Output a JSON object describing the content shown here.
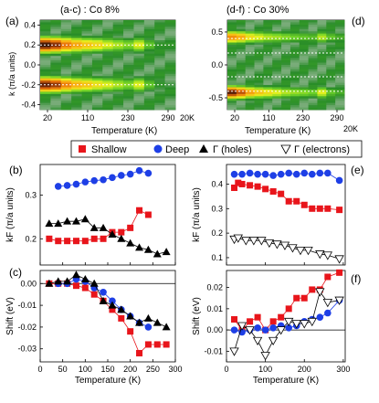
{
  "panel_letters": {
    "a": "(a)",
    "b": "(b)",
    "c": "(c)",
    "d": "(d)",
    "e": "(e)",
    "f": "(f)"
  },
  "colors": {
    "shallow": "#e8151b",
    "deep": "#1e3fe6",
    "holes": "#000000",
    "electrons": "#000000",
    "zero_line": "#000000"
  },
  "chart_data": [
    {
      "id": "a-c",
      "type": "heatmap",
      "title": "(a-c) : Co 8%",
      "xlabel": "Temperature (K)",
      "ylabel": "k (π/a units)",
      "xticks": [
        "20",
        "110",
        "230",
        "290"
      ],
      "corner_label": "20K",
      "ylim": [
        -0.45,
        0.45
      ],
      "yticks": [
        "-0.4",
        "-0.2",
        "0.0",
        "0.2",
        "0.4"
      ],
      "dashed_k": [
        0.2,
        -0.2
      ],
      "columns": 13,
      "band_profile": [
        {
          "k": 0.2,
          "width": 0.09,
          "intensity": [
            0.98,
            0.92,
            0.8,
            0.72,
            0.66,
            0.62,
            0.55,
            0.5,
            0.45,
            0.55,
            0.4,
            0.3,
            0.25
          ]
        },
        {
          "k": -0.2,
          "width": 0.09,
          "intensity": [
            0.95,
            0.9,
            0.78,
            0.7,
            0.66,
            0.6,
            0.55,
            0.5,
            0.45,
            0.55,
            0.4,
            0.3,
            0.25
          ]
        }
      ]
    },
    {
      "id": "d-f",
      "type": "heatmap",
      "title": "(d-f) : Co 30%",
      "xlabel": "Temperature (K)",
      "ylabel": "",
      "xticks": [
        "20",
        "110",
        "230",
        "290"
      ],
      "corner_label": "20K",
      "ylim": [
        -0.68,
        0.68
      ],
      "yticks": [
        "-0.5",
        "0.0",
        "0.5"
      ],
      "dashed_k": [
        0.4,
        -0.4,
        0.18,
        -0.18
      ],
      "columns": 13,
      "band_profile": [
        {
          "k": 0.42,
          "width": 0.11,
          "intensity": [
            0.75,
            0.7,
            0.6,
            0.55,
            0.5,
            0.48,
            0.45,
            0.42,
            0.4,
            0.38,
            0.5,
            0.4,
            0.35
          ]
        },
        {
          "k": -0.42,
          "width": 0.11,
          "intensity": [
            0.95,
            0.85,
            0.72,
            0.65,
            0.6,
            0.55,
            0.5,
            0.47,
            0.45,
            0.42,
            0.55,
            0.4,
            0.35
          ]
        }
      ]
    },
    {
      "id": "b",
      "type": "scatter",
      "xlabel": "",
      "ylabel": "kF (π/a units)",
      "xlim": [
        0,
        300
      ],
      "ylim": [
        0.14,
        0.37
      ],
      "yticks": [
        0.2,
        0.3
      ],
      "xticks": [
        0,
        50,
        100,
        150,
        200,
        250,
        300
      ],
      "series": [
        {
          "name": "Shallow",
          "marker": "square",
          "x": [
            20,
            40,
            60,
            80,
            100,
            120,
            140,
            160,
            180,
            200,
            220,
            240
          ],
          "y": [
            0.2,
            0.195,
            0.195,
            0.195,
            0.195,
            0.2,
            0.2,
            0.215,
            0.215,
            0.225,
            0.265,
            0.255
          ]
        },
        {
          "name": "Deep",
          "marker": "circle",
          "x": [
            40,
            60,
            80,
            100,
            120,
            140,
            160,
            180,
            200,
            220,
            240
          ],
          "y": [
            0.32,
            0.322,
            0.325,
            0.33,
            0.333,
            0.335,
            0.34,
            0.345,
            0.348,
            0.356,
            0.35
          ]
        },
        {
          "name": "Γ (holes)",
          "marker": "triangle-up",
          "x": [
            20,
            40,
            60,
            80,
            100,
            120,
            140,
            160,
            180,
            200,
            220,
            240,
            260,
            280
          ],
          "y": [
            0.235,
            0.235,
            0.24,
            0.24,
            0.245,
            0.225,
            0.225,
            0.21,
            0.2,
            0.19,
            0.18,
            0.175,
            0.165,
            0.17
          ]
        }
      ]
    },
    {
      "id": "c",
      "type": "scatter",
      "xlabel": "Temperature (K)",
      "ylabel": "Shift (eV)",
      "xlim": [
        0,
        300
      ],
      "ylim": [
        -0.036,
        0.006
      ],
      "yticks": [
        0.0,
        -0.01,
        -0.02,
        -0.03
      ],
      "xticks": [
        0,
        50,
        100,
        150,
        200,
        250,
        300
      ],
      "zero_line": true,
      "series": [
        {
          "name": "Shallow",
          "marker": "square",
          "x": [
            20,
            40,
            60,
            80,
            100,
            120,
            140,
            160,
            180,
            200,
            220,
            240,
            260,
            280
          ],
          "y": [
            0.0,
            0.0,
            0.0,
            -0.001,
            -0.002,
            -0.005,
            -0.008,
            -0.012,
            -0.016,
            -0.022,
            -0.032,
            -0.028,
            -0.028,
            -0.028
          ]
        },
        {
          "name": "Deep",
          "marker": "circle",
          "x": [
            40,
            60,
            80,
            100,
            120,
            140,
            160,
            180,
            200,
            220,
            240
          ],
          "y": [
            0.0,
            0.0,
            0.002,
            0.001,
            -0.002,
            -0.004,
            -0.008,
            -0.012,
            -0.015,
            -0.018,
            -0.02
          ]
        },
        {
          "name": "Γ (holes)",
          "marker": "triangle-up",
          "x": [
            20,
            40,
            60,
            80,
            100,
            120,
            140,
            160,
            180,
            200,
            220,
            240,
            260,
            280
          ],
          "y": [
            0.0,
            0.001,
            0.001,
            0.004,
            0.002,
            0.0,
            -0.008,
            -0.01,
            -0.012,
            -0.015,
            -0.018,
            -0.016,
            -0.018,
            -0.02
          ]
        }
      ]
    },
    {
      "id": "e",
      "type": "scatter",
      "xlabel": "",
      "ylabel": "kF (π/a units)",
      "xlim": [
        0,
        305
      ],
      "ylim": [
        0.07,
        0.48
      ],
      "yticks": [
        0.1,
        0.2,
        0.3,
        0.4
      ],
      "xticks": [
        0,
        100,
        200,
        300
      ],
      "series": [
        {
          "name": "Shallow",
          "marker": "square",
          "x": [
            20,
            30,
            40,
            60,
            80,
            100,
            120,
            140,
            160,
            180,
            200,
            220,
            240,
            260,
            290
          ],
          "y": [
            0.385,
            0.405,
            0.4,
            0.395,
            0.39,
            0.38,
            0.37,
            0.36,
            0.33,
            0.33,
            0.315,
            0.3,
            0.3,
            0.3,
            0.295
          ]
        },
        {
          "name": "Deep",
          "marker": "circle",
          "x": [
            20,
            40,
            60,
            80,
            100,
            120,
            140,
            160,
            180,
            200,
            220,
            240,
            260,
            290
          ],
          "y": [
            0.44,
            0.44,
            0.445,
            0.44,
            0.44,
            0.435,
            0.44,
            0.445,
            0.44,
            0.445,
            0.44,
            0.445,
            0.445,
            0.415
          ]
        },
        {
          "name": "Γ (electrons)",
          "marker": "triangle-down",
          "x": [
            20,
            30,
            50,
            70,
            90,
            110,
            130,
            150,
            170,
            190,
            210,
            240,
            260,
            290
          ],
          "y": [
            0.175,
            0.18,
            0.17,
            0.17,
            0.17,
            0.16,
            0.155,
            0.15,
            0.14,
            0.13,
            0.13,
            0.115,
            0.11,
            0.095
          ]
        }
      ]
    },
    {
      "id": "f",
      "type": "scatter",
      "xlabel": "Temperature (K)",
      "ylabel": "Shift (eV)",
      "xlim": [
        0,
        305
      ],
      "ylim": [
        -0.015,
        0.028
      ],
      "yticks": [
        0.02,
        0.01,
        0.0,
        -0.01
      ],
      "xticks": [
        0,
        100,
        200,
        300
      ],
      "zero_line": true,
      "series": [
        {
          "name": "Shallow",
          "marker": "square",
          "x": [
            20,
            40,
            60,
            80,
            100,
            120,
            140,
            160,
            180,
            200,
            220,
            240,
            260,
            290
          ],
          "y": [
            0.005,
            0.0,
            0.004,
            0.006,
            0.0,
            0.004,
            0.006,
            0.01,
            0.015,
            0.015,
            0.019,
            0.019,
            0.025,
            0.027
          ]
        },
        {
          "name": "Deep",
          "marker": "circle",
          "x": [
            20,
            40,
            60,
            80,
            100,
            120,
            140,
            160,
            180,
            200,
            220,
            240,
            260,
            290
          ],
          "y": [
            0.0,
            -0.001,
            0.0,
            0.001,
            0.0,
            0.001,
            0.002,
            0.001,
            0.002,
            0.004,
            0.005,
            0.006,
            0.008,
            0.014
          ]
        },
        {
          "name": "Γ (electrons)",
          "marker": "triangle-down",
          "x": [
            20,
            40,
            60,
            80,
            100,
            120,
            140,
            160,
            180,
            200,
            220,
            240,
            260,
            290
          ],
          "y": [
            -0.01,
            0.002,
            0.0,
            -0.005,
            -0.012,
            -0.005,
            0.0,
            0.004,
            0.003,
            0.003,
            0.004,
            0.018,
            0.013,
            0.014
          ]
        }
      ]
    }
  ],
  "legend": {
    "items": [
      {
        "label": "Shallow",
        "marker": "square"
      },
      {
        "label": "Deep",
        "marker": "circle"
      },
      {
        "label": "Γ (holes)",
        "marker": "triangle-up"
      },
      {
        "label": "Γ (electrons)",
        "marker": "triangle-down"
      }
    ]
  }
}
